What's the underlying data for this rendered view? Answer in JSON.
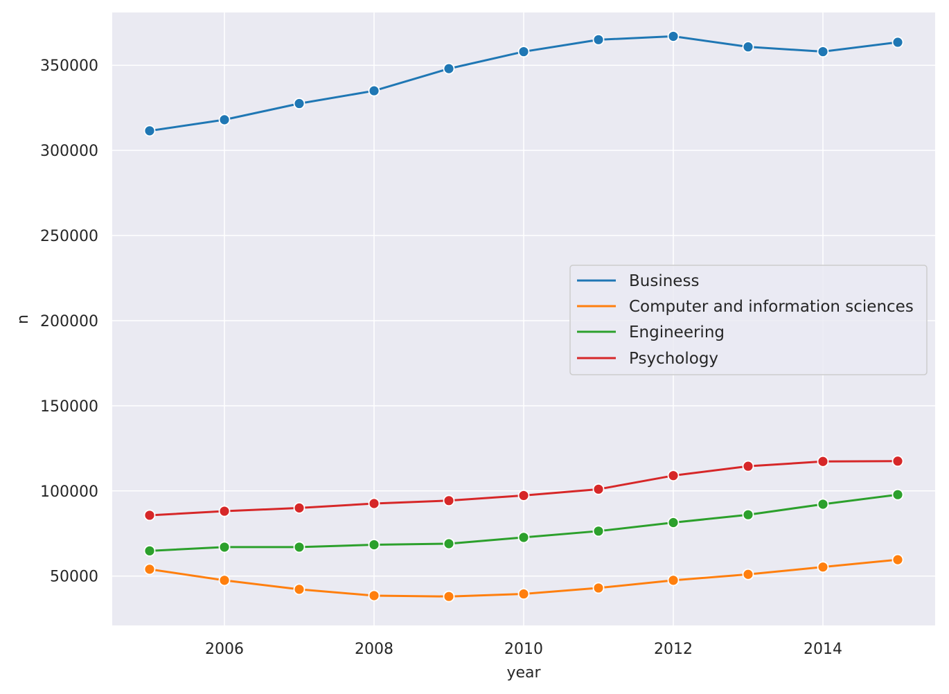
{
  "chart_data": {
    "type": "line",
    "title": "",
    "xlabel": "year",
    "ylabel": "n",
    "x": [
      2005,
      2006,
      2007,
      2008,
      2009,
      2010,
      2011,
      2012,
      2013,
      2014,
      2015
    ],
    "xlim": [
      2004.5,
      2015.5
    ],
    "ylim": [
      21000,
      381000
    ],
    "xticks": [
      2006,
      2008,
      2010,
      2012,
      2014
    ],
    "yticks": [
      50000,
      100000,
      150000,
      200000,
      250000,
      300000,
      350000
    ],
    "grid": true,
    "legend_position": "center-right",
    "background": "#eaeaf2",
    "series": [
      {
        "name": "Business",
        "color": "#1f77b4",
        "values": [
          311500,
          318000,
          327500,
          335000,
          348000,
          358000,
          365000,
          367000,
          360800,
          358000,
          363500
        ]
      },
      {
        "name": "Computer and information sciences",
        "color": "#ff7f0e",
        "values": [
          54000,
          47500,
          42200,
          38500,
          38000,
          39500,
          43000,
          47500,
          51000,
          55300,
          59600
        ]
      },
      {
        "name": "Engineering",
        "color": "#2ca02c",
        "values": [
          64800,
          67000,
          67000,
          68400,
          69000,
          72700,
          76400,
          81400,
          86000,
          92200,
          97800
        ]
      },
      {
        "name": "Psychology",
        "color": "#d62728",
        "values": [
          85700,
          88100,
          90000,
          92600,
          94300,
          97300,
          101000,
          109000,
          114500,
          117300,
          117500
        ]
      }
    ]
  }
}
